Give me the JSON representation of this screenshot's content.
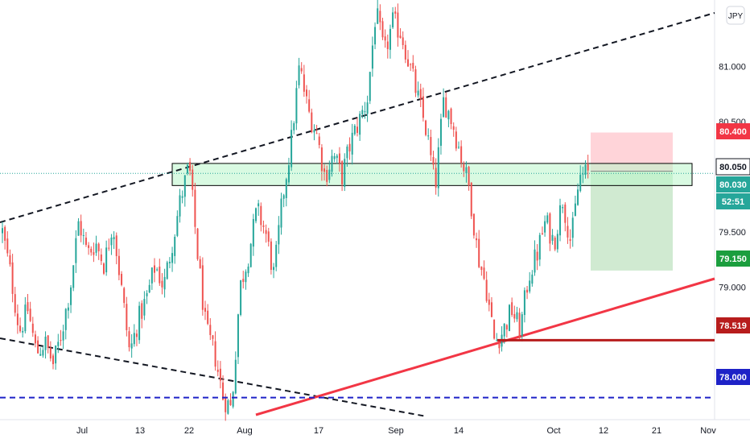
{
  "currency": "JPY",
  "colors": {
    "up": "#26a69a",
    "down": "#ef5350",
    "support_zone": "#b9f6ca",
    "stop_zone": "#ffcdd2",
    "target_zone": "#c8e6c9",
    "red_trendline": "#f23645",
    "dark_red_level": "#b71c1c",
    "blue_level": "#1e22c7",
    "price_line": "#26a69a"
  },
  "chart_data": {
    "type": "candlestick",
    "title": "",
    "xlabel": "",
    "ylabel": "",
    "ylim": [
      77.8,
      81.6
    ],
    "x_ticks": [
      "Jul",
      "13",
      "22",
      "Aug",
      "17",
      "Sep",
      "14",
      "Oct",
      "12",
      "21",
      "Nov"
    ],
    "y_ticks": [
      "81.000",
      "80.500",
      "79.500",
      "79.000"
    ],
    "price_labels": [
      {
        "name": "stop",
        "value": "80.400",
        "color": "#f23645"
      },
      {
        "name": "entry",
        "value": "80.050",
        "color": "#ffffff"
      },
      {
        "name": "current",
        "value": "80.030",
        "color": "#26a69a"
      },
      {
        "name": "countdown",
        "value": "52:51",
        "color": "#26a69a"
      },
      {
        "name": "target",
        "value": "79.150",
        "color": "#1b9e3e"
      },
      {
        "name": "support",
        "value": "78.519",
        "color": "#b71c1c"
      },
      {
        "name": "blue-level",
        "value": "78.000",
        "color": "#1e22c7"
      }
    ],
    "levels": {
      "stop": 80.4,
      "entry": 80.05,
      "current": 80.03,
      "target": 79.15,
      "support": 78.519,
      "blue": 78.0
    },
    "zones": {
      "support_resistance_box": [
        79.92,
        80.12
      ],
      "stop_zone": [
        80.05,
        80.4
      ],
      "target_zone": [
        79.15,
        80.05
      ]
    },
    "price_path": [
      79.5,
      79.1,
      78.6,
      78.8,
      78.4,
      78.5,
      78.3,
      78.6,
      79.0,
      79.6,
      79.3,
      79.4,
      79.2,
      79.6,
      79.0,
      78.4,
      78.7,
      78.9,
      79.2,
      79.0,
      79.4,
      79.8,
      80.1,
      79.3,
      78.6,
      78.4,
      78.0,
      77.9,
      79.0,
      79.3,
      79.7,
      79.5,
      79.1,
      79.8,
      80.3,
      81.0,
      80.6,
      80.4,
      80.0,
      80.2,
      80.0,
      80.3,
      80.5,
      80.7,
      81.5,
      81.1,
      81.4,
      81.3,
      81.0,
      80.7,
      80.4,
      79.9,
      80.7,
      80.5,
      80.2,
      79.9,
      79.3,
      79.0,
      78.5,
      78.6,
      78.8,
      78.6,
      79.1,
      79.3,
      79.6,
      79.4,
      79.8,
      79.4,
      80.0,
      80.03
    ]
  }
}
